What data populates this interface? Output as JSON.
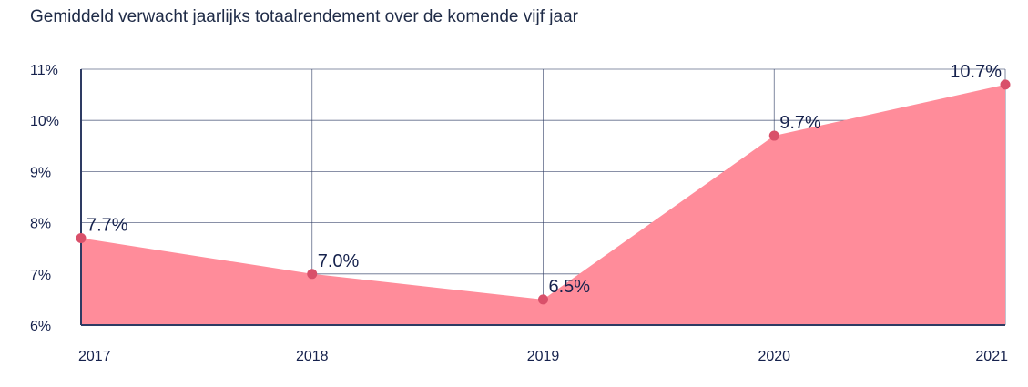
{
  "chart_data": {
    "type": "area",
    "title": "Gemiddeld verwacht jaarlijks totaalrendement over de komende vijf jaar",
    "categories": [
      "2017",
      "2018",
      "2019",
      "2020",
      "2021"
    ],
    "values": [
      7.7,
      7.0,
      6.5,
      9.7,
      10.7
    ],
    "data_labels": [
      "7.7%",
      "7.0%",
      "6.5%",
      "9.7%",
      "10.7%"
    ],
    "y_ticks": [
      6,
      7,
      8,
      9,
      10,
      11
    ],
    "y_tick_labels": [
      "6%",
      "7%",
      "8%",
      "9%",
      "10%",
      "11%"
    ],
    "ylim": [
      6,
      11
    ],
    "xlabel": "",
    "ylabel": "",
    "grid": true,
    "legend": "none",
    "colors": {
      "fill": "#ff8c9a",
      "marker": "#d9506a",
      "grid": "#2e3b63",
      "text": "#16224d"
    }
  }
}
